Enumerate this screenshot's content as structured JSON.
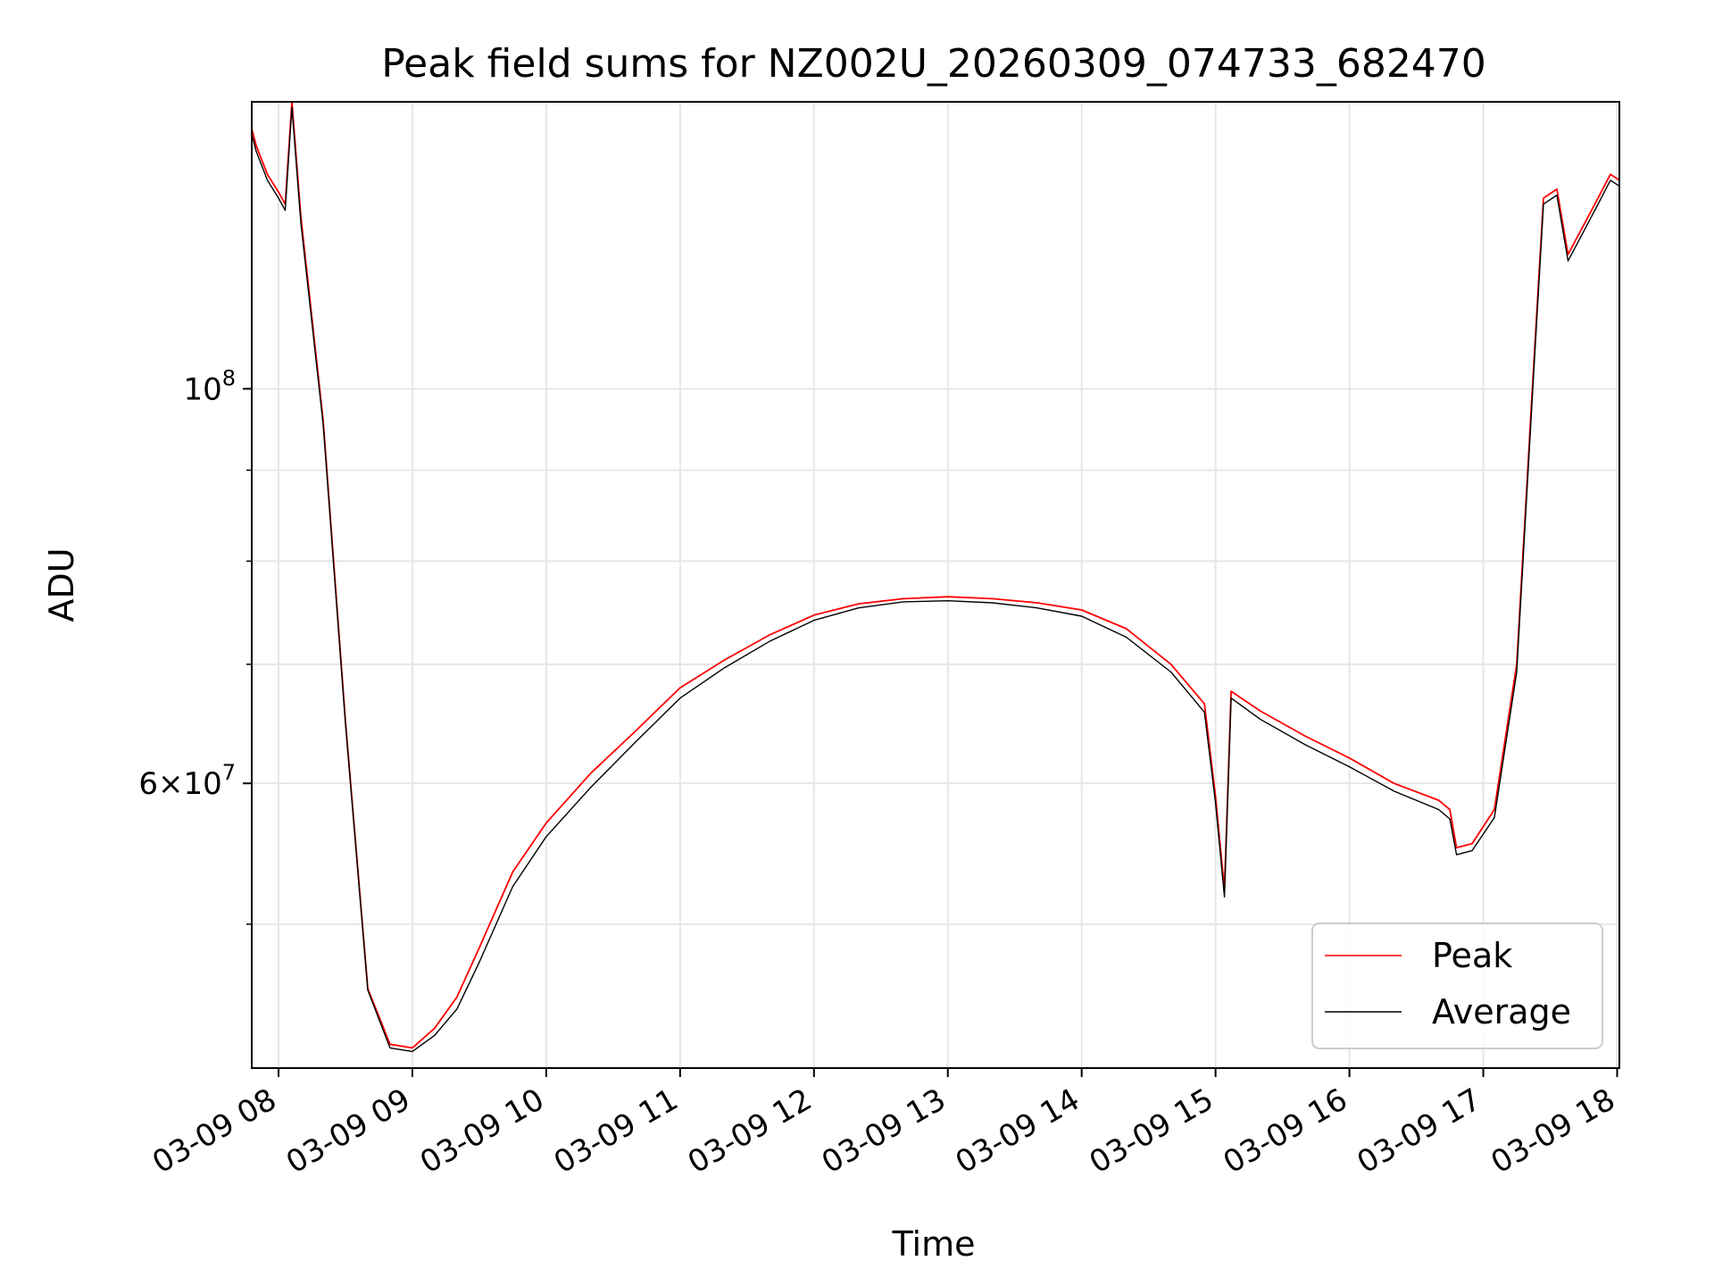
{
  "chart_data": {
    "type": "line",
    "title": "Peak field sums for NZ002U_20260309_074733_682470",
    "xlabel": "Time",
    "ylabel": "ADU",
    "yscale": "log",
    "grid": true,
    "legend_position": "lower-right",
    "xlim": [
      "2026-03-09 07:48",
      "2026-03-09 18:01"
    ],
    "ylim": [
      41500000,
      145000000
    ],
    "x_ticks": [
      {
        "value": "2026-03-09 08:00",
        "label": "03-09 08"
      },
      {
        "value": "2026-03-09 09:00",
        "label": "03-09 09"
      },
      {
        "value": "2026-03-09 10:00",
        "label": "03-09 10"
      },
      {
        "value": "2026-03-09 11:00",
        "label": "03-09 11"
      },
      {
        "value": "2026-03-09 12:00",
        "label": "03-09 12"
      },
      {
        "value": "2026-03-09 13:00",
        "label": "03-09 13"
      },
      {
        "value": "2026-03-09 14:00",
        "label": "03-09 14"
      },
      {
        "value": "2026-03-09 15:00",
        "label": "03-09 15"
      },
      {
        "value": "2026-03-09 16:00",
        "label": "03-09 16"
      },
      {
        "value": "2026-03-09 17:00",
        "label": "03-09 17"
      },
      {
        "value": "2026-03-09 18:00",
        "label": "03-09 18"
      }
    ],
    "y_major_ticks": [
      {
        "value": 100000000,
        "label": "10",
        "exp": "8"
      },
      {
        "value": 60000000,
        "label": "6×10",
        "exp": "7"
      }
    ],
    "y_minor_ticks": [
      50000000,
      70000000,
      80000000,
      90000000
    ],
    "series": [
      {
        "name": "Peak",
        "color": "#ff0000",
        "x": [
          "2026-03-09 07:48",
          "2026-03-09 07:50",
          "2026-03-09 07:55",
          "2026-03-09 08:00",
          "2026-03-09 08:03",
          "2026-03-09 08:06",
          "2026-03-09 08:10",
          "2026-03-09 08:20",
          "2026-03-09 08:30",
          "2026-03-09 08:40",
          "2026-03-09 08:50",
          "2026-03-09 09:00",
          "2026-03-09 09:10",
          "2026-03-09 09:20",
          "2026-03-09 09:30",
          "2026-03-09 09:45",
          "2026-03-09 10:00",
          "2026-03-09 10:20",
          "2026-03-09 10:40",
          "2026-03-09 11:00",
          "2026-03-09 11:20",
          "2026-03-09 11:40",
          "2026-03-09 12:00",
          "2026-03-09 12:20",
          "2026-03-09 12:40",
          "2026-03-09 13:00",
          "2026-03-09 13:20",
          "2026-03-09 13:40",
          "2026-03-09 14:00",
          "2026-03-09 14:20",
          "2026-03-09 14:40",
          "2026-03-09 14:55",
          "2026-03-09 15:00",
          "2026-03-09 15:04",
          "2026-03-09 15:07",
          "2026-03-09 15:20",
          "2026-03-09 15:40",
          "2026-03-09 16:00",
          "2026-03-09 16:20",
          "2026-03-09 16:40",
          "2026-03-09 16:45",
          "2026-03-09 16:48",
          "2026-03-09 16:55",
          "2026-03-09 17:05",
          "2026-03-09 17:15",
          "2026-03-09 17:22",
          "2026-03-09 17:27",
          "2026-03-09 17:33",
          "2026-03-09 17:38",
          "2026-03-09 17:50",
          "2026-03-09 17:57",
          "2026-03-09 18:01"
        ],
        "y": [
          140000000,
          137000000,
          132000000,
          129000000,
          127000000,
          145000000,
          125000000,
          96000000,
          65000000,
          46000000,
          42800000,
          42600000,
          43700000,
          45500000,
          48500000,
          53500000,
          57000000,
          60800000,
          64200000,
          67900000,
          70400000,
          72700000,
          74600000,
          75700000,
          76200000,
          76400000,
          76200000,
          75800000,
          75100000,
          73300000,
          70000000,
          66500000,
          59000000,
          52300000,
          67600000,
          65900000,
          63800000,
          62000000,
          60000000,
          58700000,
          58000000,
          55200000,
          55500000,
          58000000,
          70000000,
          100000000,
          128000000,
          129500000,
          119000000,
          127000000,
          132000000,
          131000000
        ]
      },
      {
        "name": "Average",
        "color": "#000000",
        "x": [
          "2026-03-09 07:48",
          "2026-03-09 07:50",
          "2026-03-09 07:55",
          "2026-03-09 08:00",
          "2026-03-09 08:03",
          "2026-03-09 08:06",
          "2026-03-09 08:10",
          "2026-03-09 08:20",
          "2026-03-09 08:30",
          "2026-03-09 08:40",
          "2026-03-09 08:50",
          "2026-03-09 09:00",
          "2026-03-09 09:10",
          "2026-03-09 09:20",
          "2026-03-09 09:30",
          "2026-03-09 09:45",
          "2026-03-09 10:00",
          "2026-03-09 10:20",
          "2026-03-09 10:40",
          "2026-03-09 11:00",
          "2026-03-09 11:20",
          "2026-03-09 11:40",
          "2026-03-09 12:00",
          "2026-03-09 12:20",
          "2026-03-09 12:40",
          "2026-03-09 13:00",
          "2026-03-09 13:20",
          "2026-03-09 13:40",
          "2026-03-09 14:00",
          "2026-03-09 14:20",
          "2026-03-09 14:40",
          "2026-03-09 14:55",
          "2026-03-09 15:00",
          "2026-03-09 15:04",
          "2026-03-09 15:07",
          "2026-03-09 15:20",
          "2026-03-09 15:40",
          "2026-03-09 16:00",
          "2026-03-09 16:20",
          "2026-03-09 16:40",
          "2026-03-09 16:45",
          "2026-03-09 16:48",
          "2026-03-09 16:55",
          "2026-03-09 17:05",
          "2026-03-09 17:15",
          "2026-03-09 17:22",
          "2026-03-09 17:27",
          "2026-03-09 17:33",
          "2026-03-09 17:38",
          "2026-03-09 17:50",
          "2026-03-09 17:57",
          "2026-03-09 18:01"
        ],
        "y": [
          139000000,
          136000000,
          131000000,
          128000000,
          126000000,
          144000000,
          124000000,
          95500000,
          64800000,
          45900000,
          42600000,
          42400000,
          43300000,
          44800000,
          47600000,
          52500000,
          56000000,
          59700000,
          63300000,
          67000000,
          69700000,
          72100000,
          74100000,
          75300000,
          75900000,
          76000000,
          75800000,
          75300000,
          74500000,
          72500000,
          69300000,
          65800000,
          58500000,
          51800000,
          67000000,
          65200000,
          63100000,
          61300000,
          59400000,
          58000000,
          57300000,
          54700000,
          55000000,
          57400000,
          69300000,
          99000000,
          127000000,
          128500000,
          118000000,
          126000000,
          131000000,
          130000000
        ]
      }
    ]
  }
}
